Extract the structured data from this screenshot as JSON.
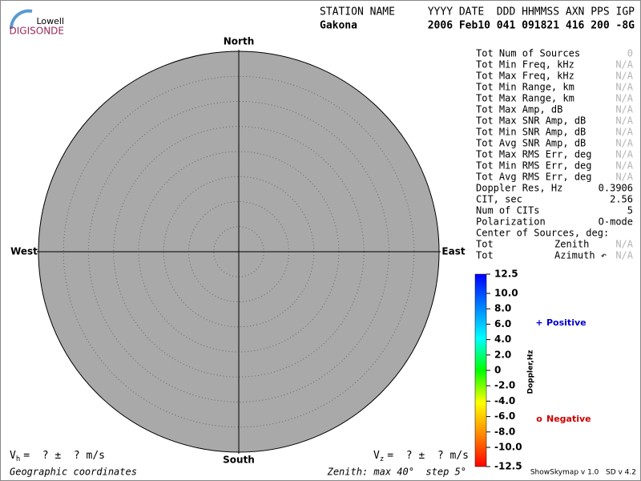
{
  "chart_data": {
    "type": "skymap",
    "logo": {
      "top": "Lowell",
      "bottom": "DIGISONDE"
    },
    "header": {
      "col1_title": "STATION NAME",
      "col2_title": "YYYY DATE  DDD HHMMSS AXN PPS IGP",
      "col1_value": "Gakona",
      "col2_value": "2006 Feb10 041 091821 416 200 -8G"
    },
    "directions": {
      "north": "North",
      "south": "South",
      "west": "West",
      "east": "East"
    },
    "disk_color": "#a9a9a9",
    "stats": [
      {
        "label": "Tot Num of Sources",
        "value": "0",
        "color": "#b4b4b4"
      },
      {
        "label": "Tot Min Freq, kHz",
        "value": "N/A",
        "color": "#b4b4b4"
      },
      {
        "label": "Tot Max Freq, kHz",
        "value": "N/A",
        "color": "#b4b4b4"
      },
      {
        "label": "Tot Min Range, km",
        "value": "N/A",
        "color": "#b4b4b4"
      },
      {
        "label": "Tot Max Range, km",
        "value": "N/A",
        "color": "#b4b4b4"
      },
      {
        "label": "Tot Max Amp, dB",
        "value": "N/A",
        "color": "#b4b4b4"
      },
      {
        "label": "Tot Max SNR Amp, dB",
        "value": "N/A",
        "color": "#b4b4b4"
      },
      {
        "label": "Tot Min SNR Amp, dB",
        "value": "N/A",
        "color": "#b4b4b4"
      },
      {
        "label": "Tot Avg SNR Amp, dB",
        "value": "N/A",
        "color": "#b4b4b4"
      },
      {
        "label": "Tot Max RMS Err, deg",
        "value": "N/A",
        "color": "#b4b4b4"
      },
      {
        "label": "Tot Min RMS Err, deg",
        "value": "N/A",
        "color": "#b4b4b4"
      },
      {
        "label": "Tot Avg RMS Err, deg",
        "value": "N/A",
        "color": "#b4b4b4"
      },
      {
        "label": "Doppler Res, Hz",
        "value": "0.3906",
        "color": "#000000"
      },
      {
        "label": "CIT, sec",
        "value": "2.56",
        "color": "#000000"
      },
      {
        "label": "Num of CITs",
        "value": "5",
        "color": "#000000"
      },
      {
        "label": "Polarization",
        "value": "O-mode",
        "color": "#000000"
      },
      {
        "label": "Center of Sources, deg:",
        "value": null,
        "color": "#000000"
      },
      {
        "label": "Tot",
        "sublabel": "Zenith",
        "value": "N/A",
        "color": "#b4b4b4"
      },
      {
        "label": "Tot",
        "sublabel": "Azimuth ↶",
        "value": "N/A",
        "color": "#b4b4b4"
      }
    ],
    "colorbar": {
      "label": "Doppler,Hz",
      "lim": [
        -12.5,
        12.5
      ],
      "colors": [
        "#ff0000",
        "#ff8800",
        "#ffff00",
        "#00ff00",
        "#00ffff",
        "#0080ff",
        "#0000ff"
      ],
      "ticks": [
        12.5,
        {
          "value": 10,
          "label": "10.0"
        },
        {
          "value": 8,
          "label": "8.0"
        },
        {
          "value": 6,
          "label": "6.0"
        },
        {
          "value": 4,
          "label": "4.0"
        },
        {
          "value": 2,
          "label": "2.0"
        },
        0,
        {
          "value": -2,
          "label": "-2.0"
        },
        {
          "value": -4,
          "label": "-4.0"
        },
        {
          "value": -6,
          "label": "-6.0"
        },
        {
          "value": -8,
          "label": "-8.0"
        },
        {
          "value": -10,
          "label": "-10.0"
        },
        -12.5
      ]
    },
    "legend": {
      "positive": {
        "symbol": "+",
        "label": "Positive",
        "color": "#0000cc"
      },
      "negative": {
        "symbol": "o",
        "label": "Negative",
        "color": "#cc0000"
      }
    },
    "vh": {
      "v": "V",
      "sub": "h",
      "rest": "=  ? ±  ? m/s"
    },
    "vz": {
      "v": "V",
      "sub": "z",
      "rest": "=  ? ±  ? m/s"
    },
    "footer": {
      "left": "Geographic coordinates",
      "center": "Zenith: max 40°  step 5°",
      "right": "ShowSkymap v 1.0   SD v 4.2"
    }
  }
}
